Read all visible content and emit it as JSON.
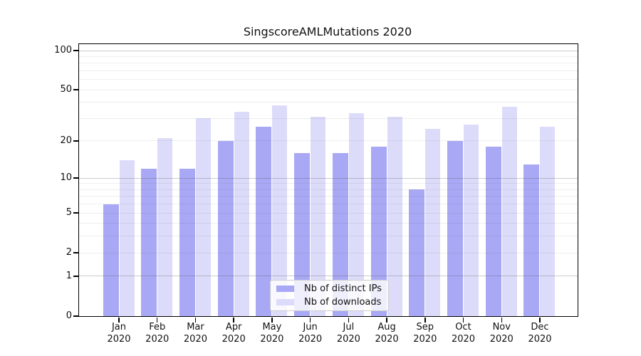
{
  "title": "SingscoreAMLMutations 2020",
  "chart_data": {
    "type": "bar",
    "title": "SingscoreAMLMutations 2020",
    "categories": [
      "Jan 2020",
      "Feb 2020",
      "Mar 2020",
      "Apr 2020",
      "May 2020",
      "Jun 2020",
      "Jul 2020",
      "Aug 2020",
      "Sep 2020",
      "Oct 2020",
      "Nov 2020",
      "Dec 2020"
    ],
    "series": [
      {
        "name": "Nb of distinct IPs",
        "color": "#a8a8f5",
        "values": [
          6,
          12,
          12,
          20,
          26,
          16,
          16,
          18,
          8,
          20,
          18,
          13
        ]
      },
      {
        "name": "Nb of downloads",
        "color": "#dcdcfa",
        "values": [
          14,
          21,
          30,
          34,
          38,
          31,
          33,
          31,
          25,
          27,
          37,
          26
        ]
      }
    ],
    "y_axis": {
      "scale": "symlog-log1p",
      "labeled_ticks": [
        0,
        1,
        2,
        5,
        10,
        20,
        50,
        100
      ],
      "grid_ticks": [
        1,
        2,
        3,
        4,
        5,
        6,
        7,
        8,
        9,
        10,
        20,
        30,
        40,
        50,
        60,
        70,
        80,
        90,
        100
      ],
      "decade_ticks": [
        1,
        10,
        100
      ],
      "ylim": [
        0,
        112
      ]
    },
    "xlabel": "",
    "ylabel": "",
    "grid": true,
    "legend": {
      "position": "lower center",
      "entries": [
        "Nb of distinct IPs",
        "Nb of downloads"
      ]
    }
  }
}
